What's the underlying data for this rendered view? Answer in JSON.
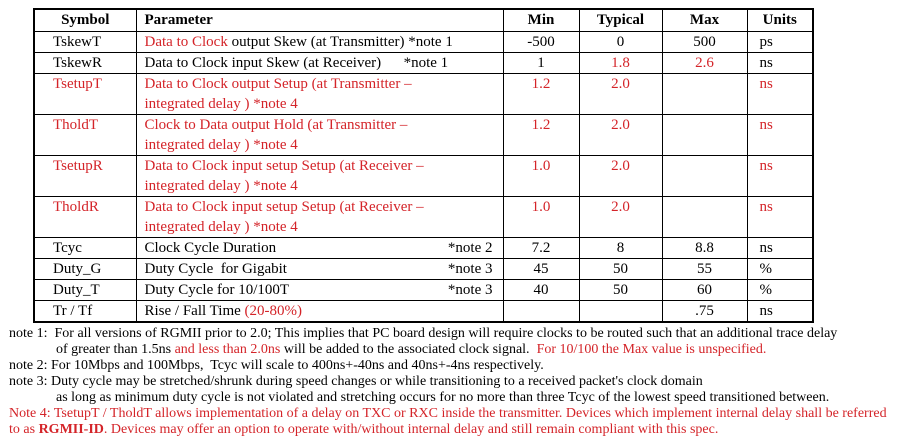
{
  "colors": {
    "red": "#d42429",
    "ink": "#000000",
    "paper": "#ffffff"
  },
  "table": {
    "headers": [
      "Symbol",
      "Parameter",
      "Min",
      "Typical",
      "Max",
      "Units"
    ],
    "rows": [
      {
        "double": false,
        "symbol": {
          "t": "TskewT",
          "c": "k"
        },
        "param": [
          {
            "t": "Data to Clock ",
            "c": "r"
          },
          {
            "t": "output Skew (at Transmitter) *note 1",
            "c": "k"
          }
        ],
        "param_note": "",
        "min": {
          "t": "-500",
          "c": "k"
        },
        "typical": {
          "t": "0",
          "c": "k"
        },
        "max": {
          "t": "500",
          "c": "k"
        },
        "units": {
          "t": "ps",
          "c": "k"
        }
      },
      {
        "double": false,
        "symbol": {
          "t": "TskewR",
          "c": "k"
        },
        "param": [
          {
            "t": "Data to Clock input Skew (at Receiver)      *note 1",
            "c": "k"
          }
        ],
        "param_note": "",
        "min": {
          "t": "1",
          "c": "k"
        },
        "typical": {
          "t": "1.8",
          "c": "r"
        },
        "max": {
          "t": "2.6",
          "c": "r"
        },
        "units": {
          "t": "ns",
          "c": "k"
        }
      },
      {
        "double": true,
        "symbol": {
          "t": "TsetupT",
          "c": "r"
        },
        "param": [
          {
            "t": "Data to Clock output Setup (at Transmitter –\nintegrated delay ) *note 4",
            "c": "r"
          }
        ],
        "param_note": "",
        "min": {
          "t": "1.2",
          "c": "r"
        },
        "typical": {
          "t": "2.0",
          "c": "r"
        },
        "max": {
          "t": "",
          "c": "k"
        },
        "units": {
          "t": "ns",
          "c": "r"
        }
      },
      {
        "double": true,
        "symbol": {
          "t": "TholdT",
          "c": "r"
        },
        "param": [
          {
            "t": "Clock to Data output Hold (at Transmitter –\nintegrated delay ) *note 4",
            "c": "r"
          }
        ],
        "param_note": "",
        "min": {
          "t": "1.2",
          "c": "r"
        },
        "typical": {
          "t": "2.0",
          "c": "r"
        },
        "max": {
          "t": "",
          "c": "k"
        },
        "units": {
          "t": "ns",
          "c": "r"
        }
      },
      {
        "double": true,
        "symbol": {
          "t": "TsetupR",
          "c": "r"
        },
        "param": [
          {
            "t": "Data to Clock input setup Setup (at Receiver –\nintegrated delay ) *note 4",
            "c": "r"
          }
        ],
        "param_note": "",
        "min": {
          "t": "1.0",
          "c": "r"
        },
        "typical": {
          "t": "2.0",
          "c": "r"
        },
        "max": {
          "t": "",
          "c": "k"
        },
        "units": {
          "t": "ns",
          "c": "r"
        }
      },
      {
        "double": true,
        "symbol": {
          "t": "TholdR",
          "c": "r"
        },
        "param": [
          {
            "t": "Data to Clock input setup Setup (at Receiver –\nintegrated delay ) *note 4",
            "c": "r"
          }
        ],
        "param_note": "",
        "min": {
          "t": "1.0",
          "c": "r"
        },
        "typical": {
          "t": "2.0",
          "c": "r"
        },
        "max": {
          "t": "",
          "c": "k"
        },
        "units": {
          "t": "ns",
          "c": "r"
        }
      },
      {
        "double": false,
        "symbol": {
          "t": "Tcyc",
          "c": "k"
        },
        "param": [
          {
            "t": "Clock Cycle Duration",
            "c": "k"
          }
        ],
        "param_note": "*note 2",
        "min": {
          "t": "7.2",
          "c": "k"
        },
        "typical": {
          "t": "8",
          "c": "k"
        },
        "max": {
          "t": "8.8",
          "c": "k"
        },
        "units": {
          "t": "ns",
          "c": "k"
        }
      },
      {
        "double": false,
        "symbol": {
          "t": "Duty_G",
          "c": "k"
        },
        "param": [
          {
            "t": "Duty Cycle  for Gigabit",
            "c": "k"
          }
        ],
        "param_note": "*note 3",
        "min": {
          "t": "45",
          "c": "k"
        },
        "typical": {
          "t": "50",
          "c": "k"
        },
        "max": {
          "t": "55",
          "c": "k"
        },
        "units": {
          "t": "%",
          "c": "k"
        }
      },
      {
        "double": false,
        "symbol": {
          "t": "Duty_T",
          "c": "k"
        },
        "param": [
          {
            "t": "Duty Cycle for 10/100T",
            "c": "k"
          }
        ],
        "param_note": "*note 3",
        "min": {
          "t": "40",
          "c": "k"
        },
        "typical": {
          "t": "50",
          "c": "k"
        },
        "max": {
          "t": "60",
          "c": "k"
        },
        "units": {
          "t": "%",
          "c": "k"
        }
      },
      {
        "double": false,
        "symbol": {
          "t": "Tr / Tf",
          "c": "k"
        },
        "param": [
          {
            "t": "Rise / Fall Time ",
            "c": "k"
          },
          {
            "t": "(20-80%)",
            "c": "r"
          }
        ],
        "param_note": "",
        "min": {
          "t": "",
          "c": "k"
        },
        "typical": {
          "t": "",
          "c": "k"
        },
        "max": {
          "t": ".75",
          "c": "k"
        },
        "units": {
          "t": "ns",
          "c": "k"
        }
      }
    ]
  },
  "notes": {
    "lines": [
      {
        "indent": false,
        "segments": [
          {
            "t": "note 1:  For all versions of RGMII prior to 2.0; This implies that PC board design will require clocks to be routed such that an additional trace delay",
            "c": "k"
          }
        ]
      },
      {
        "indent": true,
        "segments": [
          {
            "t": "of greater than 1.5ns ",
            "c": "k"
          },
          {
            "t": "and less than 2.0ns",
            "c": "r"
          },
          {
            "t": " will be added to the associated clock signal.  ",
            "c": "k"
          },
          {
            "t": "For 10/100 the Max value is unspecified.",
            "c": "r"
          }
        ]
      },
      {
        "indent": false,
        "segments": [
          {
            "t": "note 2: For 10Mbps and 100Mbps,  Tcyc will scale to 400ns+-40ns and 40ns+-4ns respectively.",
            "c": "k"
          }
        ]
      },
      {
        "indent": false,
        "segments": [
          {
            "t": "note 3: Duty cycle may be stretched/shrunk during speed changes or while transitioning to a received packet's clock domain",
            "c": "k"
          }
        ]
      },
      {
        "indent": true,
        "segments": [
          {
            "t": "as long as minimum duty cycle is not violated and stretching occurs for no more than three Tcyc of the lowest speed transitioned between.",
            "c": "k"
          }
        ]
      },
      {
        "indent": false,
        "segments": [
          {
            "t": "Note 4: TsetupT / TholdT allows implementation of a delay on TXC or RXC inside the transmitter. Devices which implement internal delay shall be referred",
            "c": "r"
          }
        ]
      },
      {
        "indent": false,
        "segments": [
          {
            "t": "to as ",
            "c": "r"
          },
          {
            "t": "RGMII-ID",
            "c": "r",
            "b": true
          },
          {
            "t": ". Devices may offer an option to operate with/without internal delay and still remain compliant with this spec.",
            "c": "r"
          }
        ]
      }
    ]
  }
}
